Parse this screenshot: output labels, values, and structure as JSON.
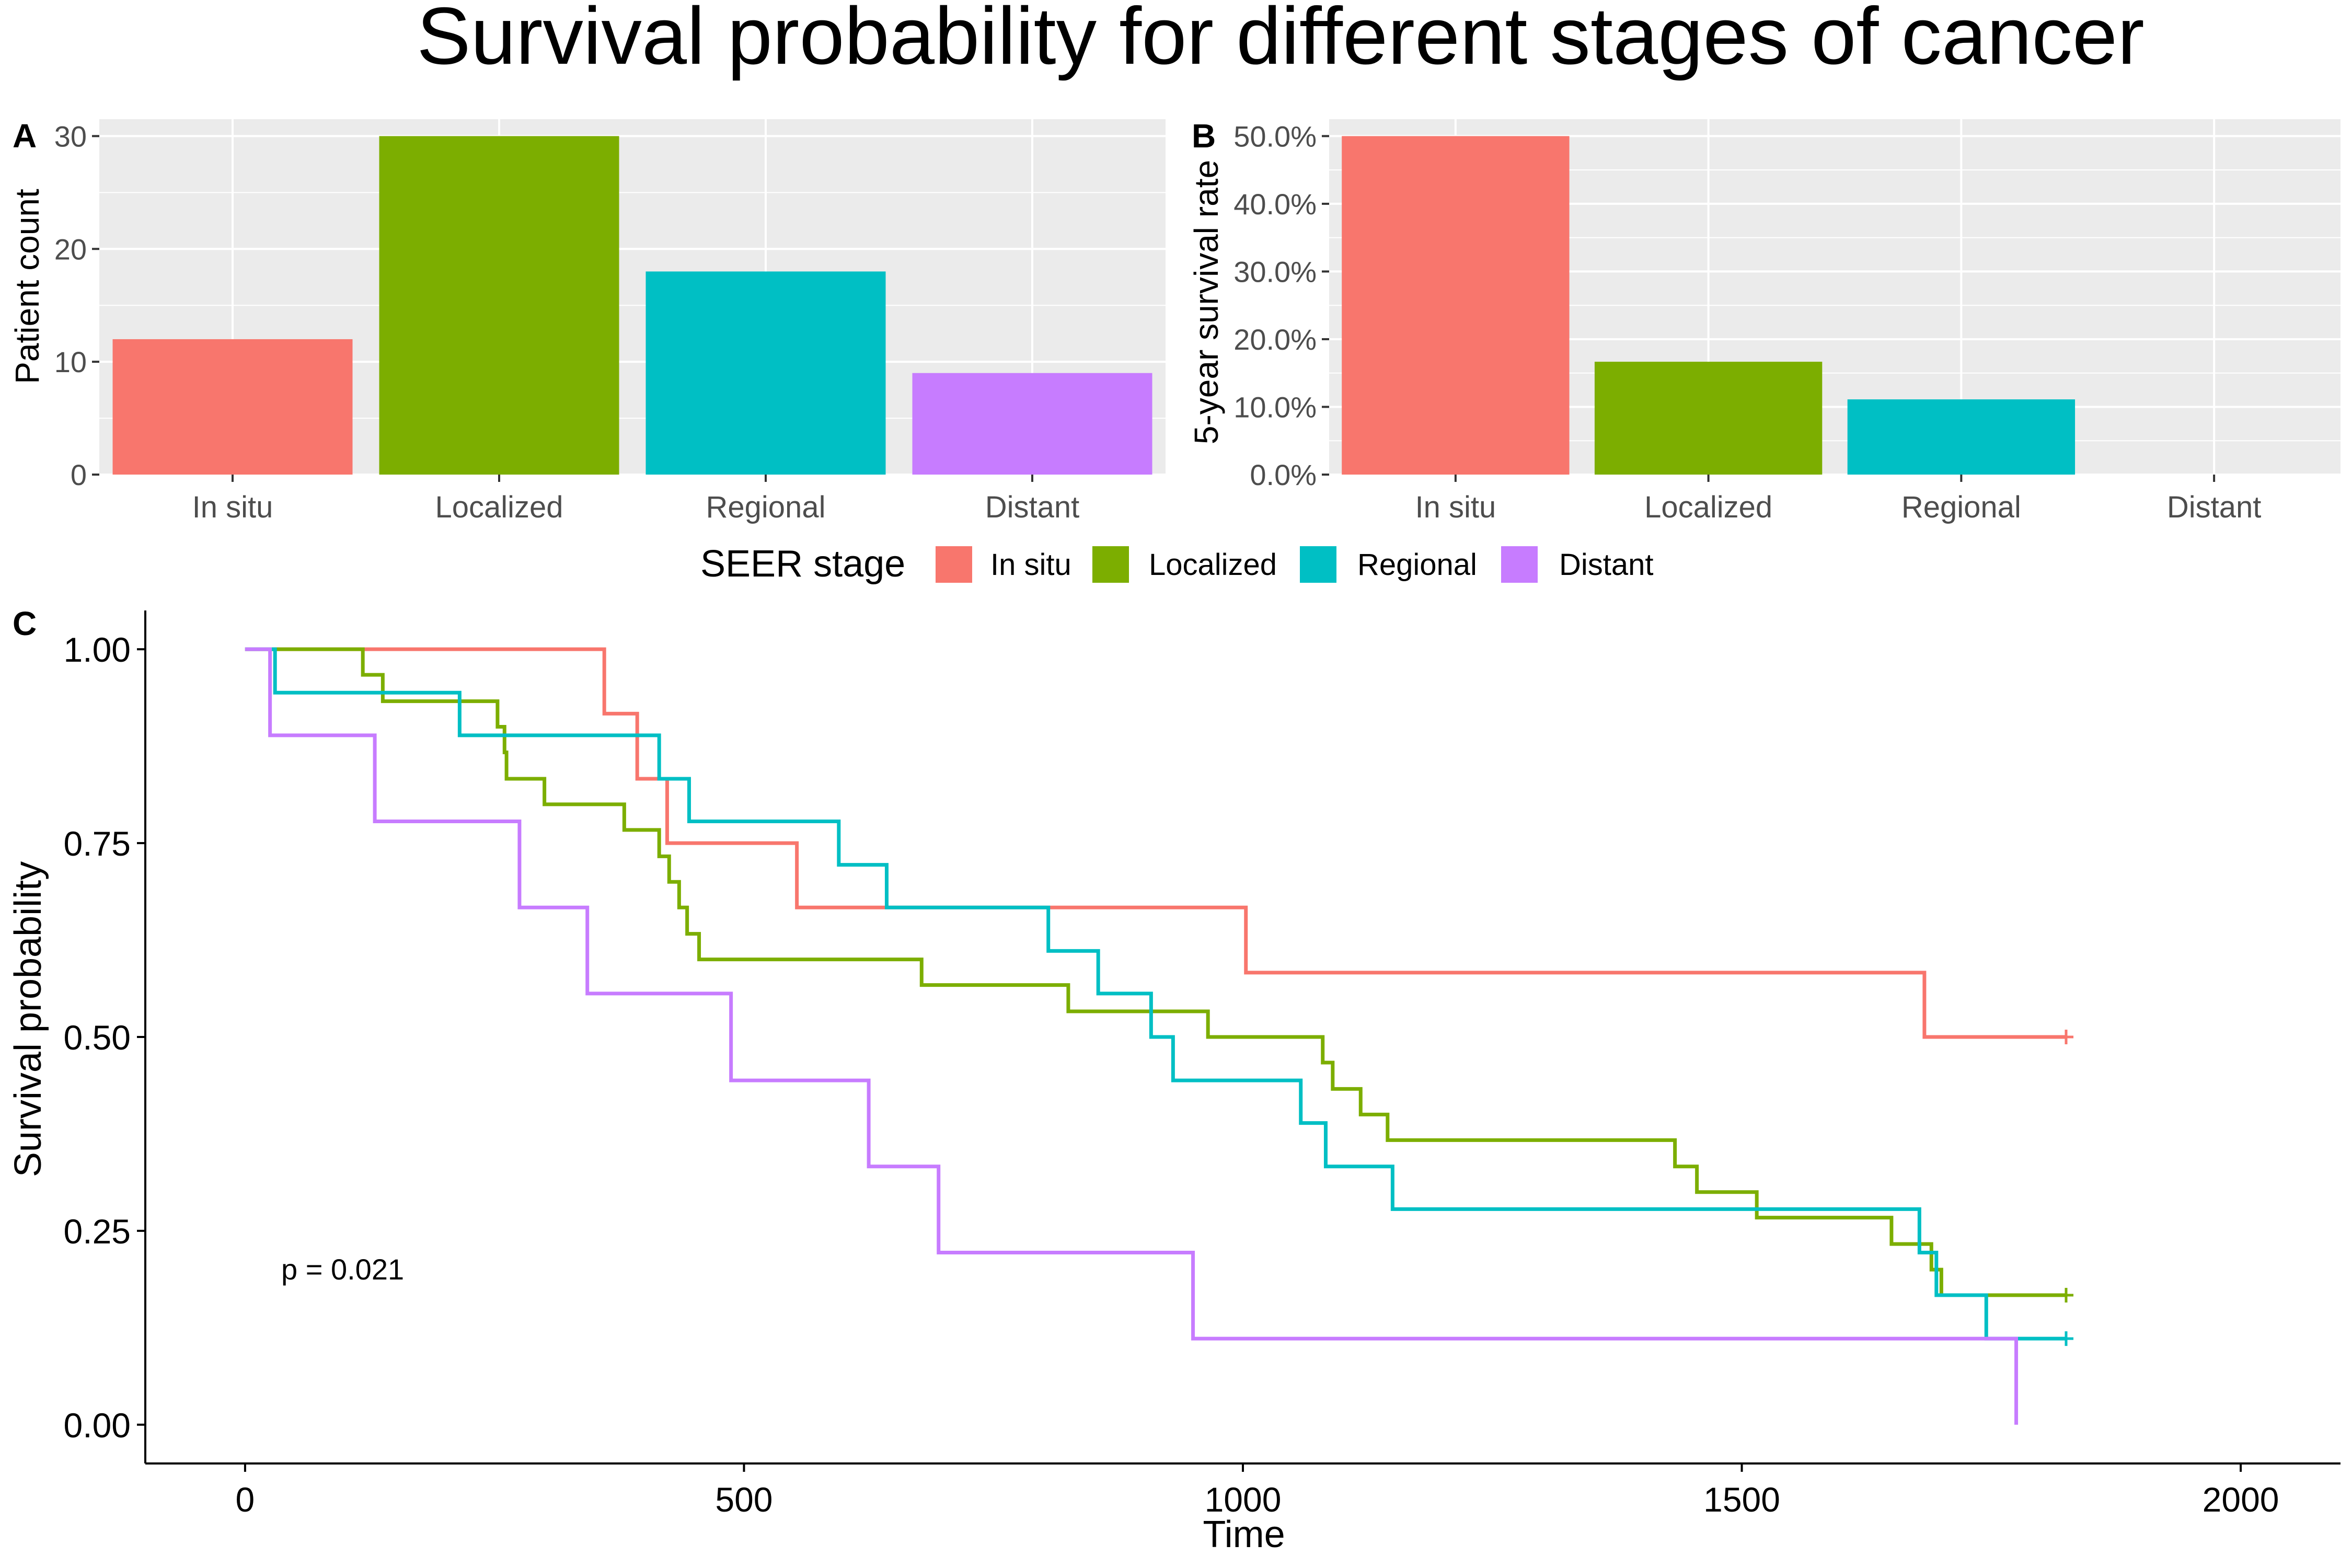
{
  "figure": {
    "title": "Survival probability for different stages of cancer",
    "colors": {
      "in_situ": "#F8766D",
      "localized": "#7CAE00",
      "regional": "#00BFC4",
      "distant": "#C77CFF",
      "panel_bg": "#EBEBEB",
      "grid": "#FFFFFF",
      "axis_text": "#4D4D4D"
    }
  },
  "legend": {
    "title": "SEER stage",
    "items": [
      "In situ",
      "Localized",
      "Regional",
      "Distant"
    ]
  },
  "chart_data": [
    {
      "panel": "A",
      "type": "bar",
      "categories": [
        "In situ",
        "Localized",
        "Regional",
        "Distant"
      ],
      "values": [
        12,
        30,
        18,
        9
      ],
      "ylabel": "Patient count",
      "ylim": [
        0,
        31.5
      ],
      "yticks": [
        0,
        10,
        20,
        30
      ],
      "ytick_labels": [
        "0",
        "10",
        "20",
        "30"
      ],
      "grid": true
    },
    {
      "panel": "B",
      "type": "bar",
      "categories": [
        "In situ",
        "Localized",
        "Regional",
        "Distant"
      ],
      "values": [
        0.5,
        0.1667,
        0.1111,
        0
      ],
      "ylabel": "5-year survival rate",
      "ylim": [
        0,
        0.525
      ],
      "yticks": [
        0,
        0.1,
        0.2,
        0.3,
        0.4,
        0.5
      ],
      "ytick_labels": [
        "0.0%",
        "10.0%",
        "20.0%",
        "30.0%",
        "40.0%",
        "50.0%"
      ],
      "grid": true
    },
    {
      "panel": "C",
      "type": "line",
      "xlabel": "Time",
      "ylabel": "Survival probability",
      "xlim": [
        -100,
        2100
      ],
      "ylim": [
        -0.05,
        1.05
      ],
      "xticks": [
        0,
        500,
        1000,
        1500,
        2000
      ],
      "xtick_labels": [
        "0",
        "500",
        "1000",
        "1500",
        "2000"
      ],
      "yticks": [
        0,
        0.25,
        0.5,
        0.75,
        1.0
      ],
      "ytick_labels": [
        "0.00",
        "0.25",
        "0.50",
        "0.75",
        "1.00"
      ],
      "annotation": "p = 0.021",
      "grid": false,
      "series": [
        {
          "name": "In situ",
          "censored": true,
          "x": [
            0,
            360,
            393,
            423,
            553,
            1003,
            1683,
            1825
          ],
          "y": [
            1.0,
            0.917,
            0.833,
            0.75,
            0.667,
            0.583,
            0.5,
            0.5
          ]
        },
        {
          "name": "Localized",
          "censored": true,
          "x": [
            0,
            118,
            138,
            253,
            260,
            262,
            300,
            380,
            415,
            425,
            435,
            443,
            455,
            625,
            678,
            825,
            965,
            1080,
            1090,
            1118,
            1145,
            1433,
            1455,
            1515,
            1650,
            1690,
            1700,
            1825
          ],
          "y": [
            1.0,
            0.967,
            0.933,
            0.9,
            0.867,
            0.833,
            0.8,
            0.767,
            0.733,
            0.7,
            0.667,
            0.633,
            0.6,
            0.6,
            0.567,
            0.533,
            0.5,
            0.467,
            0.433,
            0.4,
            0.367,
            0.333,
            0.3,
            0.267,
            0.233,
            0.2,
            0.167,
            0.167
          ],
          "y_note_unused": []
        },
        {
          "name": "Regional",
          "censored": true,
          "x": [
            0,
            30,
            215,
            415,
            445,
            595,
            643,
            805,
            855,
            908,
            930,
            1058,
            1083,
            1150,
            1678,
            1695,
            1745,
            1825
          ],
          "y": [
            1.0,
            0.944,
            0.889,
            0.833,
            0.778,
            0.722,
            0.667,
            0.611,
            0.556,
            0.5,
            0.444,
            0.389,
            0.333,
            0.278,
            0.222,
            0.167,
            0.111,
            0.111
          ]
        },
        {
          "name": "Distant",
          "censored": false,
          "x": [
            0,
            25,
            130,
            275,
            343,
            487,
            625,
            695,
            950,
            1775
          ],
          "y": [
            1.0,
            0.889,
            0.778,
            0.667,
            0.556,
            0.444,
            0.333,
            0.222,
            0.111,
            0.0
          ]
        }
      ]
    }
  ]
}
